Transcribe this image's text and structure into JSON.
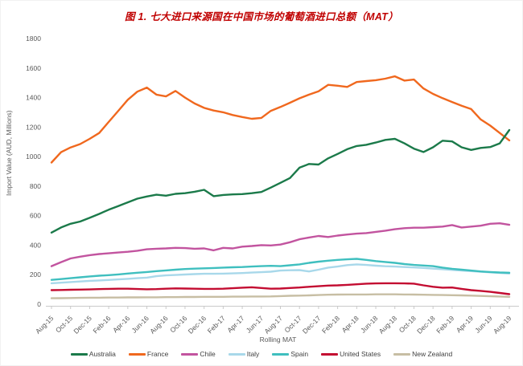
{
  "figure": {
    "title_color": "#C00000",
    "axis_text_color": "#595959",
    "axis_line_color": "#c9c9c9",
    "legend_text_color": "#3f3f3f"
  },
  "chart_data": {
    "type": "line",
    "title": "图 1. 七大进口来源国在中国市场的葡萄酒进口总额（MAT）",
    "x_axis": {
      "title": "Rolling MAT",
      "tick_labels": [
        "Aug-15",
        "Oct-15",
        "Dec-15",
        "Feb-16",
        "Apr-16",
        "Jun-16",
        "Aug-16",
        "Oct-16",
        "Dec-16",
        "Feb-17",
        "Apr-17",
        "Jun-17",
        "Aug-17",
        "Oct-17",
        "Dec-17",
        "Feb-18",
        "Apr-18",
        "Jun-18",
        "Aug-18",
        "Oct-18",
        "Dec-18",
        "Feb-19",
        "Apr-19",
        "Jun-19",
        "Aug-19"
      ]
    },
    "y_axis": {
      "title": "Import Value (AUD, Millions)",
      "ticks": [
        0,
        200,
        400,
        600,
        800,
        1000,
        1200,
        1400,
        1600,
        1800
      ],
      "range": [
        0,
        1800
      ]
    },
    "grid": false,
    "legend_position": "bottom",
    "x": [
      "Aug-15",
      "Sep-15",
      "Oct-15",
      "Nov-15",
      "Dec-15",
      "Jan-16",
      "Feb-16",
      "Mar-16",
      "Apr-16",
      "May-16",
      "Jun-16",
      "Jul-16",
      "Aug-16",
      "Sep-16",
      "Oct-16",
      "Nov-16",
      "Dec-16",
      "Jan-17",
      "Feb-17",
      "Mar-17",
      "Apr-17",
      "May-17",
      "Jun-17",
      "Jul-17",
      "Aug-17",
      "Sep-17",
      "Oct-17",
      "Nov-17",
      "Dec-17",
      "Jan-18",
      "Feb-18",
      "Mar-18",
      "Apr-18",
      "May-18",
      "Jun-18",
      "Jul-18",
      "Aug-18",
      "Sep-18",
      "Oct-18",
      "Nov-18",
      "Dec-18",
      "Jan-19",
      "Feb-19",
      "Mar-19",
      "Apr-19",
      "May-19",
      "Jun-19",
      "Jul-19",
      "Aug-19"
    ],
    "series": [
      {
        "name": "Australia",
        "color": "#1b7a4a",
        "values": [
          485,
          520,
          545,
          560,
          585,
          612,
          640,
          665,
          690,
          715,
          730,
          742,
          735,
          748,
          752,
          762,
          775,
          732,
          740,
          744,
          746,
          752,
          760,
          790,
          822,
          855,
          925,
          950,
          946,
          988,
          1018,
          1050,
          1072,
          1080,
          1095,
          1113,
          1120,
          1090,
          1054,
          1031,
          1063,
          1108,
          1103,
          1063,
          1045,
          1059,
          1065,
          1090,
          1180
        ]
      },
      {
        "name": "France",
        "color": "#f0681e",
        "values": [
          960,
          1030,
          1062,
          1085,
          1120,
          1160,
          1235,
          1310,
          1385,
          1440,
          1468,
          1420,
          1408,
          1445,
          1400,
          1360,
          1330,
          1312,
          1300,
          1282,
          1268,
          1256,
          1262,
          1310,
          1336,
          1365,
          1395,
          1420,
          1442,
          1486,
          1480,
          1472,
          1505,
          1512,
          1518,
          1528,
          1544,
          1515,
          1522,
          1462,
          1425,
          1396,
          1370,
          1345,
          1322,
          1252,
          1210,
          1160,
          1110
        ]
      },
      {
        "name": "Chile",
        "color": "#c2549f",
        "values": [
          258,
          285,
          310,
          322,
          332,
          340,
          345,
          350,
          355,
          362,
          372,
          376,
          378,
          382,
          380,
          376,
          378,
          365,
          382,
          378,
          390,
          394,
          400,
          398,
          404,
          420,
          440,
          452,
          462,
          455,
          465,
          472,
          478,
          482,
          490,
          498,
          508,
          515,
          518,
          518,
          522,
          526,
          536,
          520,
          526,
          532,
          545,
          548,
          538
        ]
      },
      {
        "name": "Italy",
        "color": "#a8d8ea",
        "values": [
          142,
          146,
          150,
          154,
          158,
          161,
          164,
          168,
          172,
          176,
          180,
          190,
          195,
          198,
          201,
          204,
          206,
          206,
          207,
          209,
          211,
          214,
          217,
          220,
          228,
          230,
          231,
          222,
          234,
          248,
          255,
          265,
          270,
          266,
          261,
          257,
          255,
          252,
          249,
          246,
          241,
          237,
          232,
          228,
          224,
          220,
          216,
          212,
          208
        ]
      },
      {
        "name": "Spain",
        "color": "#3fbfbf",
        "values": [
          165,
          170,
          176,
          182,
          188,
          193,
          197,
          202,
          208,
          213,
          218,
          224,
          229,
          234,
          238,
          241,
          243,
          245,
          248,
          250,
          252,
          255,
          258,
          260,
          258,
          264,
          270,
          280,
          288,
          295,
          300,
          304,
          307,
          300,
          292,
          286,
          280,
          272,
          266,
          262,
          258,
          248,
          240,
          234,
          228,
          222,
          218,
          215,
          213
        ]
      },
      {
        "name": "United States",
        "color": "#c30c31",
        "values": [
          95,
          96,
          98,
          99,
          100,
          102,
          104,
          105,
          105,
          103,
          101,
          102,
          105,
          107,
          106,
          105,
          104,
          104,
          105,
          108,
          112,
          115,
          110,
          105,
          106,
          110,
          113,
          118,
          122,
          126,
          128,
          131,
          135,
          139,
          141,
          142,
          142,
          141,
          139,
          128,
          118,
          112,
          113,
          104,
          95,
          90,
          84,
          76,
          68
        ]
      },
      {
        "name": "New Zealand",
        "color": "#c7bea4",
        "values": [
          40,
          41,
          42,
          43,
          44,
          44,
          45,
          45,
          46,
          46,
          47,
          47,
          48,
          48,
          49,
          49,
          50,
          50,
          50,
          51,
          51,
          52,
          52,
          53,
          55,
          57,
          58,
          60,
          62,
          64,
          65,
          66,
          66,
          66,
          67,
          67,
          67,
          66,
          65,
          64,
          63,
          62,
          61,
          60,
          58,
          56,
          54,
          52,
          50
        ]
      }
    ]
  }
}
